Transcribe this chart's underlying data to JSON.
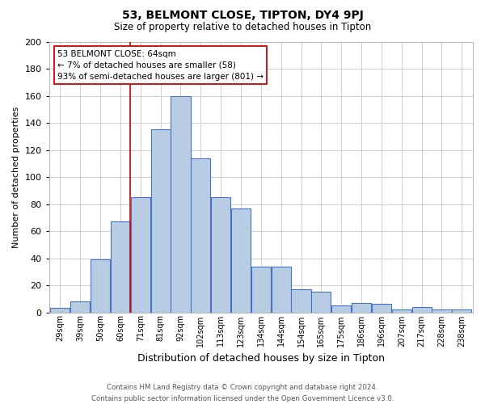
{
  "title": "53, BELMONT CLOSE, TIPTON, DY4 9PJ",
  "subtitle": "Size of property relative to detached houses in Tipton",
  "xlabel": "Distribution of detached houses by size in Tipton",
  "ylabel": "Number of detached properties",
  "footer_line1": "Contains HM Land Registry data © Crown copyright and database right 2024.",
  "footer_line2": "Contains public sector information licensed under the Open Government Licence v3.0.",
  "categories": [
    "29sqm",
    "39sqm",
    "50sqm",
    "60sqm",
    "71sqm",
    "81sqm",
    "92sqm",
    "102sqm",
    "113sqm",
    "123sqm",
    "134sqm",
    "144sqm",
    "154sqm",
    "165sqm",
    "175sqm",
    "186sqm",
    "196sqm",
    "207sqm",
    "217sqm",
    "228sqm",
    "238sqm"
  ],
  "values": [
    3,
    8,
    39,
    67,
    85,
    135,
    160,
    114,
    85,
    77,
    34,
    34,
    17,
    15,
    5,
    7,
    6,
    2,
    4,
    2,
    2
  ],
  "bar_color": "#b8cce4",
  "bar_edge_color": "#4472c4",
  "bar_edge_width": 0.8,
  "ylim": [
    0,
    200
  ],
  "yticks": [
    0,
    20,
    40,
    60,
    80,
    100,
    120,
    140,
    160,
    180,
    200
  ],
  "vline_x_index": 3.5,
  "vline_color": "#cc0000",
  "annotation_title": "53 BELMONT CLOSE: 64sqm",
  "annotation_line2": "← 7% of detached houses are smaller (58)",
  "annotation_line3": "93% of semi-detached houses are larger (801) →",
  "annotation_box_color": "#ffffff",
  "annotation_box_edge": "#cc0000",
  "background_color": "#ffffff",
  "grid_color": "#d0d0d0"
}
